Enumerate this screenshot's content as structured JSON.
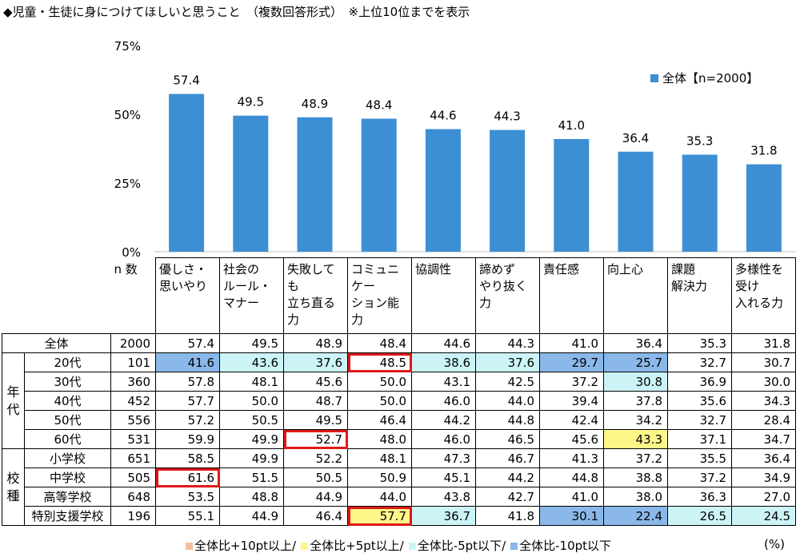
{
  "title": "◆児童・生徒に身につけてほしいと思うこと　（複数回答形式）　※上位10位までを表示",
  "chart_data": {
    "type": "bar",
    "categories": [
      "優しさ・思いやり",
      "社会のルール・マナー",
      "失敗しても立ち直る力",
      "コミュニケーション能力",
      "協調性",
      "諦めずやり抜く力",
      "責任感",
      "向上心",
      "課題解決力",
      "多様性を受け入れる力"
    ],
    "series": [
      {
        "name": "全体【n=2000】",
        "values": [
          57.4,
          49.5,
          48.9,
          48.4,
          44.6,
          44.3,
          41.0,
          36.4,
          35.3,
          31.8
        ]
      }
    ],
    "value_labels": [
      "57.4",
      "49.5",
      "48.9",
      "48.4",
      "44.6",
      "44.3",
      "41.0",
      "36.4",
      "35.3",
      "31.8"
    ],
    "yticks": [
      "0%",
      "25%",
      "50%",
      "75%"
    ],
    "ylim": [
      0,
      75
    ],
    "legend_position": "top-right",
    "bar_color": "#3d8fd4"
  },
  "table": {
    "n_label": "n 数",
    "headers": [
      "優しさ・\n思いやり",
      "社会の\nルール・\nマナー",
      "失敗しても\n立ち直る\n力",
      "コミュニケー\nション能力",
      "協調性",
      "諦めず\nやり抜く力",
      "責任感",
      "向上心",
      "課題\n解決力",
      "多様性を\n受け\n入れる力"
    ],
    "total": {
      "label": "全体",
      "n": "2000",
      "values": [
        "57.4",
        "49.5",
        "48.9",
        "48.4",
        "44.6",
        "44.3",
        "41.0",
        "36.4",
        "35.3",
        "31.8"
      ]
    },
    "groups": [
      {
        "label": "年\n代",
        "rows": [
          {
            "label": "20代",
            "n": "101",
            "values": [
              "41.6",
              "43.6",
              "37.6",
              "48.5",
              "38.6",
              "37.6",
              "29.7",
              "25.7",
              "32.7",
              "30.7"
            ],
            "styles": [
              "b1",
              "b2",
              "b2",
              "red",
              "b2",
              "b2",
              "b1",
              "b1",
              "",
              ""
            ]
          },
          {
            "label": "30代",
            "n": "360",
            "values": [
              "57.8",
              "48.1",
              "45.6",
              "50.0",
              "43.1",
              "42.5",
              "37.2",
              "30.8",
              "36.9",
              "30.0"
            ],
            "styles": [
              "",
              "",
              "",
              "",
              "",
              "",
              "",
              "b2",
              "",
              ""
            ]
          },
          {
            "label": "40代",
            "n": "452",
            "values": [
              "57.7",
              "50.0",
              "48.7",
              "50.0",
              "46.0",
              "44.0",
              "39.4",
              "37.8",
              "35.6",
              "34.3"
            ],
            "styles": [
              "",
              "",
              "",
              "",
              "",
              "",
              "",
              "",
              "",
              ""
            ]
          },
          {
            "label": "50代",
            "n": "556",
            "values": [
              "57.2",
              "50.5",
              "49.5",
              "46.4",
              "44.2",
              "44.8",
              "42.4",
              "34.2",
              "32.7",
              "28.4"
            ],
            "styles": [
              "",
              "",
              "",
              "",
              "",
              "",
              "",
              "",
              "",
              ""
            ]
          },
          {
            "label": "60代",
            "n": "531",
            "values": [
              "59.9",
              "49.9",
              "52.7",
              "48.0",
              "46.0",
              "46.5",
              "45.6",
              "43.3",
              "37.1",
              "34.7"
            ],
            "styles": [
              "",
              "",
              "red",
              "",
              "",
              "",
              "",
              "y",
              "",
              ""
            ]
          }
        ]
      },
      {
        "label": "校\n種",
        "rows": [
          {
            "label": "小学校",
            "n": "651",
            "values": [
              "58.5",
              "49.9",
              "52.2",
              "48.1",
              "47.3",
              "46.7",
              "41.3",
              "37.2",
              "35.5",
              "36.4"
            ],
            "styles": [
              "",
              "",
              "",
              "",
              "",
              "",
              "",
              "",
              "",
              ""
            ]
          },
          {
            "label": "中学校",
            "n": "505",
            "values": [
              "61.6",
              "51.5",
              "50.5",
              "50.9",
              "45.1",
              "44.2",
              "44.8",
              "38.8",
              "37.2",
              "34.9"
            ],
            "styles": [
              "red",
              "",
              "",
              "",
              "",
              "",
              "",
              "",
              "",
              ""
            ]
          },
          {
            "label": "高等学校",
            "n": "648",
            "values": [
              "53.5",
              "48.8",
              "44.9",
              "44.0",
              "43.8",
              "42.7",
              "41.0",
              "38.0",
              "36.3",
              "27.0"
            ],
            "styles": [
              "",
              "",
              "",
              "",
              "",
              "",
              "",
              "",
              "",
              ""
            ]
          },
          {
            "label": "特別支援学校",
            "n": "196",
            "values": [
              "55.1",
              "44.9",
              "46.4",
              "57.7",
              "36.7",
              "41.8",
              "30.1",
              "22.4",
              "26.5",
              "24.5"
            ],
            "styles": [
              "",
              "",
              "",
              "yred",
              "b2",
              "",
              "b1",
              "b1",
              "b2",
              "b2"
            ]
          }
        ]
      }
    ]
  },
  "legend": {
    "items": [
      {
        "label": "全体比+10pt以上/",
        "color": "#f4c09a"
      },
      {
        "label": "全体比+5pt以上/",
        "color": "#fff68a"
      },
      {
        "label": "全体比-5pt以下/",
        "color": "#ccf4f7"
      },
      {
        "label": "全体比-10pt以下",
        "color": "#8ab8e8"
      }
    ],
    "unit": "(%)"
  }
}
